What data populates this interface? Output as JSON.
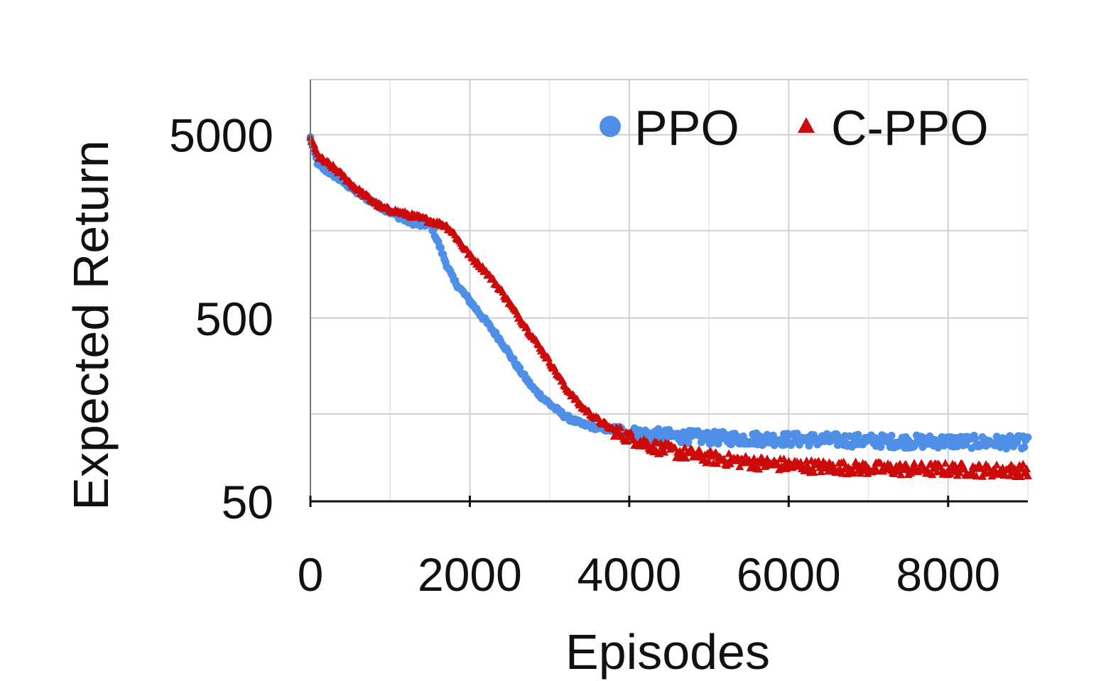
{
  "chart_data": {
    "type": "scatter",
    "title": "",
    "xlabel": "Episodes",
    "ylabel": "Expected Return",
    "y_scale": "log",
    "xlim": [
      0,
      9000
    ],
    "ylim": [
      50,
      10000
    ],
    "x_ticks": [
      0,
      2000,
      4000,
      6000,
      8000
    ],
    "x_tick_labels": [
      "0",
      "2000",
      "4000",
      "6000",
      "8000"
    ],
    "y_ticks": [
      50,
      500,
      5000
    ],
    "y_tick_labels": [
      "50",
      "500",
      "5000"
    ],
    "grid": true,
    "legend_position": "top-right",
    "series": [
      {
        "name": "PPO",
        "marker": "circle",
        "color": "#4f8fe8",
        "x": [
          0,
          100,
          300,
          600,
          900,
          1200,
          1400,
          1500,
          1600,
          1700,
          1800,
          2000,
          2200,
          2400,
          2600,
          2800,
          3000,
          3200,
          3400,
          3600,
          3800,
          4000,
          4300,
          4600,
          5000,
          5500,
          6000,
          6500,
          7000,
          7500,
          8000,
          8500,
          9000
        ],
        "values": [
          4800,
          3400,
          3000,
          2400,
          2000,
          1700,
          1600,
          1650,
          1300,
          1000,
          800,
          620,
          480,
          370,
          270,
          205,
          170,
          145,
          132,
          126,
          122,
          118,
          115,
          113,
          111,
          110,
          109,
          108,
          107,
          106,
          106,
          105,
          105
        ]
      },
      {
        "name": "C-PPO",
        "marker": "triangle",
        "color": "#cc0a0a",
        "x": [
          0,
          100,
          300,
          600,
          900,
          1200,
          1400,
          1600,
          1700,
          1800,
          2000,
          2200,
          2400,
          2600,
          2800,
          3000,
          3200,
          3400,
          3600,
          3800,
          4000,
          4300,
          4600,
          5000,
          5500,
          6000,
          6500,
          7000,
          7500,
          8000,
          8500,
          9000
        ],
        "values": [
          4800,
          3800,
          3300,
          2500,
          2000,
          1850,
          1750,
          1650,
          1600,
          1450,
          1100,
          900,
          700,
          520,
          390,
          290,
          210,
          165,
          140,
          123,
          112,
          100,
          93,
          87,
          82,
          79,
          77,
          76,
          75,
          75,
          74,
          74
        ]
      }
    ]
  }
}
